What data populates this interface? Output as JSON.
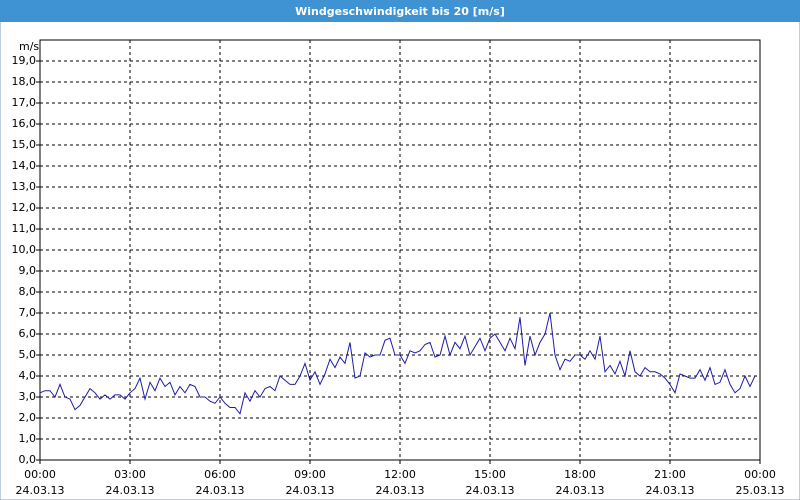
{
  "chart_data": {
    "type": "line",
    "title": "Windgeschwindigkeit bis 20 [m/s]",
    "y_label": "m/s",
    "xlim": [
      0,
      1440
    ],
    "xticks": [
      {
        "value": 0,
        "label": "00:00",
        "date": "24.03.13"
      },
      {
        "value": 180,
        "label": "03:00",
        "date": "24.03.13"
      },
      {
        "value": 360,
        "label": "06:00",
        "date": "24.03.13"
      },
      {
        "value": 540,
        "label": "09:00",
        "date": "24.03.13"
      },
      {
        "value": 720,
        "label": "12:00",
        "date": "24.03.13"
      },
      {
        "value": 900,
        "label": "15:00",
        "date": "24.03.13"
      },
      {
        "value": 1080,
        "label": "18:00",
        "date": "24.03.13"
      },
      {
        "value": 1260,
        "label": "21:00",
        "date": "24.03.13"
      },
      {
        "value": 1440,
        "label": "00:00",
        "date": "25.03.13"
      }
    ],
    "ylim": [
      0,
      20
    ],
    "yticks": [
      {
        "value": 0,
        "label": "0,0"
      },
      {
        "value": 1,
        "label": "1,0"
      },
      {
        "value": 2,
        "label": "2,0"
      },
      {
        "value": 3,
        "label": "3,0"
      },
      {
        "value": 4,
        "label": "4,0"
      },
      {
        "value": 5,
        "label": "5,0"
      },
      {
        "value": 6,
        "label": "6,0"
      },
      {
        "value": 7,
        "label": "7,0"
      },
      {
        "value": 8,
        "label": "8,0"
      },
      {
        "value": 9,
        "label": "9,0"
      },
      {
        "value": 10,
        "label": "10,0"
      },
      {
        "value": 11,
        "label": "11,0"
      },
      {
        "value": 12,
        "label": "12,0"
      },
      {
        "value": 13,
        "label": "13,0"
      },
      {
        "value": 14,
        "label": "14,0"
      },
      {
        "value": 15,
        "label": "15,0"
      },
      {
        "value": 16,
        "label": "16,0"
      },
      {
        "value": 17,
        "label": "17,0"
      },
      {
        "value": 18,
        "label": "18,0"
      },
      {
        "value": 19,
        "label": "19,0"
      }
    ],
    "grid": true,
    "color": "#1c1ca6",
    "x": [
      0,
      10,
      20,
      30,
      40,
      50,
      60,
      70,
      80,
      90,
      100,
      110,
      120,
      130,
      140,
      150,
      160,
      170,
      180,
      190,
      200,
      210,
      220,
      230,
      240,
      250,
      260,
      270,
      280,
      290,
      300,
      310,
      320,
      330,
      340,
      350,
      360,
      370,
      380,
      390,
      400,
      410,
      420,
      430,
      440,
      450,
      460,
      470,
      480,
      490,
      500,
      510,
      520,
      530,
      540,
      550,
      560,
      570,
      580,
      590,
      600,
      610,
      620,
      630,
      640,
      650,
      660,
      670,
      680,
      690,
      700,
      710,
      720,
      730,
      740,
      750,
      760,
      770,
      780,
      790,
      800,
      810,
      820,
      830,
      840,
      850,
      860,
      870,
      880,
      890,
      900,
      910,
      920,
      930,
      940,
      950,
      960,
      970,
      980,
      990,
      1000,
      1010,
      1020,
      1030,
      1040,
      1050,
      1060,
      1070,
      1080,
      1090,
      1100,
      1110,
      1120,
      1130,
      1140,
      1150,
      1160,
      1170,
      1180,
      1190,
      1200,
      1210,
      1220,
      1230,
      1240,
      1250,
      1260,
      1270,
      1280,
      1290,
      1300,
      1310,
      1320,
      1330,
      1340,
      1350,
      1360,
      1370,
      1380,
      1390,
      1400,
      1410,
      1420,
      1430
    ],
    "values": [
      3.2,
      3.3,
      3.3,
      3.0,
      3.6,
      3.0,
      2.9,
      2.4,
      2.6,
      3.0,
      3.4,
      3.2,
      2.9,
      3.1,
      2.9,
      3.1,
      3.1,
      2.9,
      3.2,
      3.4,
      3.9,
      2.9,
      3.7,
      3.3,
      3.9,
      3.5,
      3.7,
      3.1,
      3.5,
      3.2,
      3.6,
      3.5,
      3.0,
      3.0,
      2.8,
      2.7,
      3.0,
      2.7,
      2.5,
      2.5,
      2.2,
      3.2,
      2.8,
      3.3,
      3.0,
      3.4,
      3.5,
      3.3,
      4.0,
      3.8,
      3.6,
      3.6,
      4.0,
      4.6,
      3.8,
      4.2,
      3.6,
      4.1,
      4.8,
      4.4,
      4.9,
      4.6,
      5.6,
      3.9,
      4.0,
      5.1,
      4.9,
      5.0,
      5.0,
      5.7,
      5.8,
      5.0,
      5.0,
      4.6,
      5.2,
      5.1,
      5.2,
      5.5,
      5.6,
      4.9,
      5.0,
      5.9,
      5.0,
      5.6,
      5.3,
      5.9,
      5.0,
      5.4,
      5.8,
      5.2,
      5.8,
      6.0,
      5.6,
      5.2,
      5.8,
      5.3,
      6.8,
      4.5,
      5.9,
      5.0,
      5.6,
      6.0,
      7.0,
      5.0,
      4.3,
      4.8,
      4.7,
      5.0,
      5.0,
      4.8,
      5.2,
      4.8,
      5.9,
      4.2,
      4.5,
      4.1,
      4.7,
      4.0,
      5.2,
      4.2,
      4.0,
      4.4,
      4.2,
      4.2,
      4.1,
      3.9,
      3.6,
      3.2,
      4.1,
      4.0,
      3.9,
      3.9,
      4.3,
      3.8,
      4.4,
      3.6,
      3.7,
      4.3,
      3.6,
      3.2,
      3.4,
      4.0,
      3.5,
      4.0
    ]
  }
}
